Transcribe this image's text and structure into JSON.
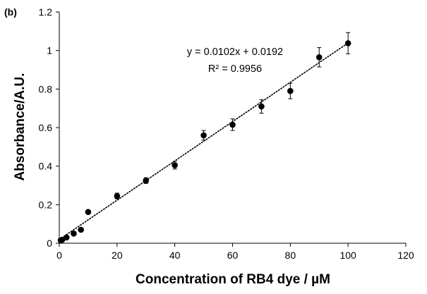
{
  "chart_data": {
    "type": "scatter",
    "panel_label": "(b)",
    "xlabel": "Concentration of RB4 dye / µM",
    "ylabel": "Absorbance/A.U.",
    "xlim": [
      0,
      120
    ],
    "ylim": [
      0,
      1.2
    ],
    "x_ticks": [
      0,
      20,
      40,
      60,
      80,
      100,
      120
    ],
    "y_ticks": [
      0,
      0.2,
      0.4,
      0.6,
      0.8,
      1,
      1.2
    ],
    "x_tick_labels": [
      "0",
      "20",
      "40",
      "60",
      "80",
      "100",
      "120"
    ],
    "y_tick_labels": [
      "0",
      "0.2",
      "0.4",
      "0.6",
      "0.8",
      "1",
      "1.2"
    ],
    "grid": false,
    "points": [
      {
        "x": 0.5,
        "y": 0.015,
        "err": 0.004
      },
      {
        "x": 1,
        "y": 0.018,
        "err": 0.004
      },
      {
        "x": 2.5,
        "y": 0.03,
        "err": 0.005
      },
      {
        "x": 5,
        "y": 0.05,
        "err": 0.006
      },
      {
        "x": 7.5,
        "y": 0.07,
        "err": 0.007
      },
      {
        "x": 10,
        "y": 0.162,
        "err": 0.008
      },
      {
        "x": 20,
        "y": 0.245,
        "err": 0.015
      },
      {
        "x": 30,
        "y": 0.325,
        "err": 0.015
      },
      {
        "x": 40,
        "y": 0.405,
        "err": 0.02
      },
      {
        "x": 50,
        "y": 0.56,
        "err": 0.025
      },
      {
        "x": 60,
        "y": 0.615,
        "err": 0.03
      },
      {
        "x": 70,
        "y": 0.71,
        "err": 0.035
      },
      {
        "x": 80,
        "y": 0.79,
        "err": 0.04
      },
      {
        "x": 90,
        "y": 0.965,
        "err": 0.05
      },
      {
        "x": 100,
        "y": 1.038,
        "err": 0.055
      }
    ],
    "trendline": {
      "style": "dotted",
      "slope": 0.0102,
      "intercept": 0.0192,
      "x_range": [
        0,
        100
      ]
    },
    "annotations": {
      "equation": "y = 0.0102x + 0.0192",
      "r_squared": "R² = 0.9956"
    }
  }
}
